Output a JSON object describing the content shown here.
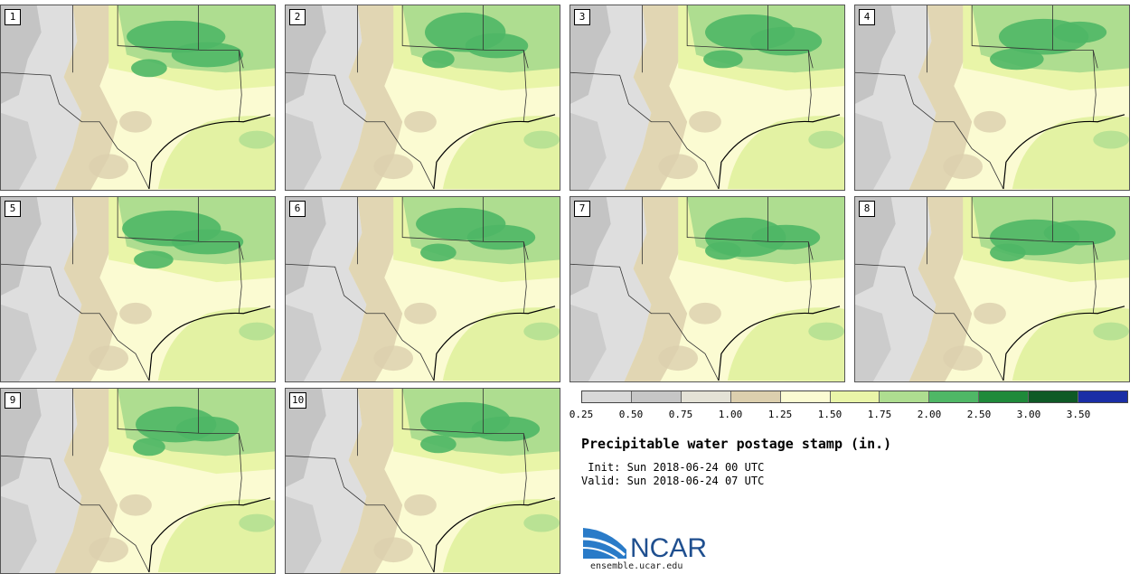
{
  "panels": [
    {
      "label": "1",
      "wet": [
        [
          195,
          35,
          55,
          18
        ],
        [
          230,
          55,
          40,
          14
        ],
        [
          165,
          70,
          20,
          10
        ]
      ]
    },
    {
      "label": "2",
      "wet": [
        [
          200,
          30,
          45,
          22
        ],
        [
          235,
          45,
          35,
          14
        ],
        [
          170,
          60,
          18,
          10
        ]
      ]
    },
    {
      "label": "3",
      "wet": [
        [
          200,
          30,
          50,
          20
        ],
        [
          240,
          40,
          40,
          16
        ],
        [
          170,
          60,
          22,
          10
        ]
      ]
    },
    {
      "label": "4",
      "wet": [
        [
          210,
          35,
          50,
          20
        ],
        [
          180,
          60,
          30,
          12
        ],
        [
          250,
          30,
          30,
          12
        ]
      ]
    },
    {
      "label": "5",
      "wet": [
        [
          190,
          35,
          55,
          20
        ],
        [
          230,
          50,
          40,
          14
        ],
        [
          170,
          70,
          22,
          10
        ]
      ]
    },
    {
      "label": "6",
      "wet": [
        [
          195,
          30,
          50,
          18
        ],
        [
          240,
          45,
          38,
          14
        ],
        [
          170,
          62,
          20,
          10
        ]
      ]
    },
    {
      "label": "7",
      "wet": [
        [
          195,
          45,
          45,
          22
        ],
        [
          240,
          45,
          38,
          14
        ],
        [
          170,
          60,
          20,
          10
        ]
      ]
    },
    {
      "label": "8",
      "wet": [
        [
          200,
          45,
          50,
          20
        ],
        [
          250,
          40,
          40,
          14
        ],
        [
          170,
          62,
          20,
          10
        ]
      ]
    },
    {
      "label": "9",
      "wet": [
        [
          195,
          40,
          45,
          20
        ],
        [
          230,
          45,
          35,
          14
        ],
        [
          165,
          65,
          18,
          10
        ]
      ]
    },
    {
      "label": "10",
      "wet": [
        [
          200,
          35,
          50,
          20
        ],
        [
          245,
          45,
          38,
          14
        ],
        [
          170,
          62,
          20,
          10
        ]
      ]
    }
  ],
  "legend": {
    "colors": [
      "#d8d8d8",
      "#c6c6c6",
      "#e4e2d6",
      "#dccfae",
      "#fbfbd2",
      "#e9f5a8",
      "#aedd90",
      "#4fb766",
      "#1f8a3a",
      "#0e5a26",
      "#1a2ea6"
    ],
    "ticks": [
      "0.25",
      "0.50",
      "0.75",
      "1.00",
      "1.25",
      "1.50",
      "1.75",
      "2.00",
      "2.50",
      "3.00",
      "3.50"
    ]
  },
  "title": "Precipitable water postage stamp (in.)",
  "init": " Init: Sun 2018-06-24 00 UTC",
  "valid": "Valid: Sun 2018-06-24 07 UTC",
  "logo": {
    "text": "NCAR",
    "site": "ensemble.ucar.edu",
    "brand_color": "#1f4f8f",
    "swoosh_color": "#2a7bc8"
  },
  "palette": {
    "gray_dark": "#c4c4c4",
    "gray_light": "#dedede",
    "tan": "#dccfae",
    "cream": "#fbfbd2",
    "lime": "#e9f5a8",
    "green_light": "#aedd90",
    "green_mid": "#4fb766",
    "green_dark": "#1f8a3a",
    "gulf": "#e3f2a3"
  }
}
